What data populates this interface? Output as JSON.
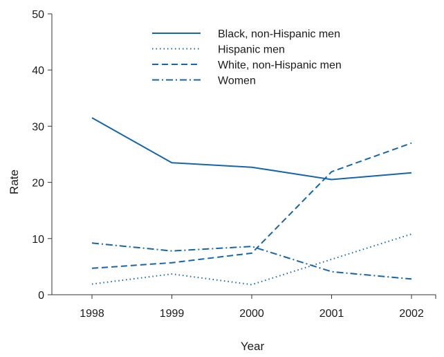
{
  "chart_data": {
    "type": "line",
    "title": "",
    "xlabel": "Year",
    "ylabel": "Rate",
    "categories": [
      "1998",
      "1999",
      "2000",
      "2001",
      "2002"
    ],
    "ylim": [
      0,
      50
    ],
    "yticks": [
      0,
      10,
      20,
      30,
      40,
      50
    ],
    "grid": false,
    "legend_position": "top-center",
    "line_color": "#1565a8",
    "series": [
      {
        "name": "Black, non-Hispanic men",
        "style": "solid",
        "values": [
          31.5,
          23.5,
          22.7,
          20.5,
          21.7
        ]
      },
      {
        "name": "Hispanic men",
        "style": "dotted",
        "values": [
          1.9,
          3.7,
          1.8,
          6.3,
          10.8
        ]
      },
      {
        "name": "White, non-Hispanic men",
        "style": "dashed",
        "values": [
          4.7,
          5.7,
          7.4,
          21.9,
          27.0
        ]
      },
      {
        "name": "Women",
        "style": "dashdot",
        "values": [
          9.2,
          7.8,
          8.6,
          4.1,
          2.8
        ]
      }
    ]
  }
}
